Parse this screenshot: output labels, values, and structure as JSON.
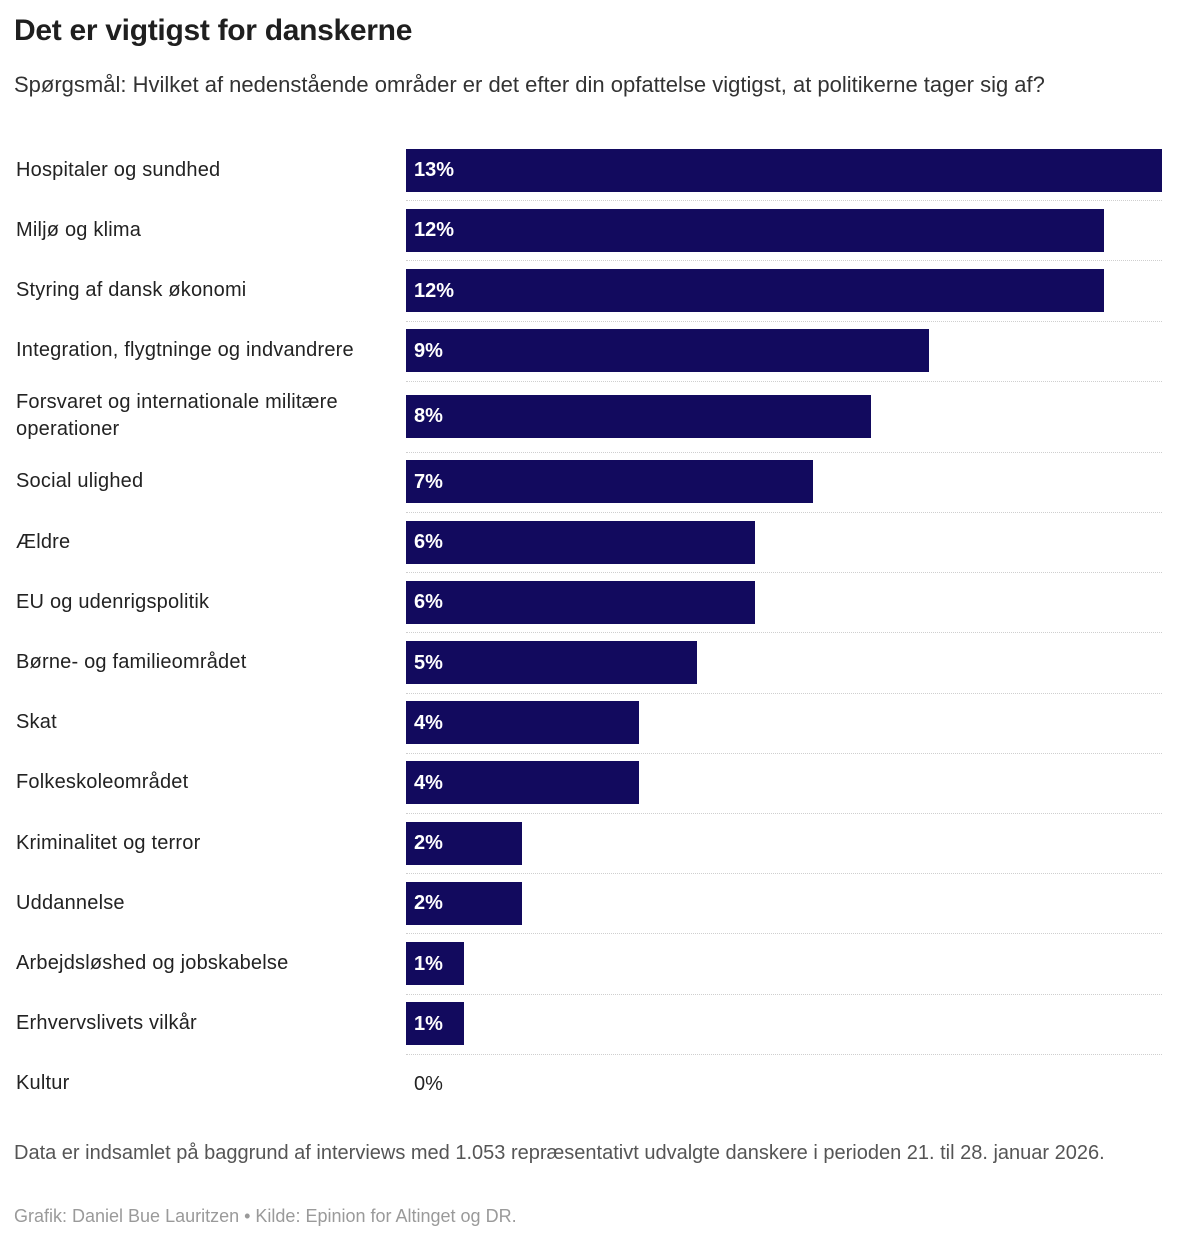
{
  "title": "Det er vigtigst for danskerne",
  "subtitle": "Spørgsmål: Hvilket af nedenstående områder er det efter din opfattelse vigtigst, at politikerne tager sig af?",
  "colors": {
    "bar": "#120a5e",
    "bar_label": "#ffffff",
    "zero_label": "#222222"
  },
  "chart_data": {
    "type": "bar",
    "orientation": "horizontal",
    "unit": "%",
    "xlim": [
      0,
      13
    ],
    "grid": false,
    "categories": [
      "Hospitaler og sundhed",
      "Miljø og klima",
      "Styring af dansk økonomi",
      "Integration, flygtninge og indvandrere",
      "Forsvaret og internationale militære operationer",
      "Social ulighed",
      "Ældre",
      "EU og udenrigspolitik",
      "Børne- og familieområdet",
      "Skat",
      "Folkeskoleområdet",
      "Kriminalitet og terror",
      "Uddannelse",
      "Arbejdsløshed og jobskabelse",
      "Erhvervslivets vilkår",
      "Kultur"
    ],
    "values": [
      13,
      12,
      12,
      9,
      8,
      7,
      6,
      6,
      5,
      4,
      4,
      2,
      2,
      1,
      1,
      0
    ],
    "value_labels": [
      "13%",
      "12%",
      "12%",
      "9%",
      "8%",
      "7%",
      "6%",
      "6%",
      "5%",
      "4%",
      "4%",
      "2%",
      "2%",
      "1%",
      "1%",
      "0%"
    ]
  },
  "footer": {
    "note": "Data er indsamlet på baggrund af interviews med 1.053 repræsentativt udvalgte danskere i perioden 21. til 28. januar 2026.",
    "credit": "Grafik: Daniel Bue Lauritzen • Kilde: Epinion for Altinget og DR."
  }
}
